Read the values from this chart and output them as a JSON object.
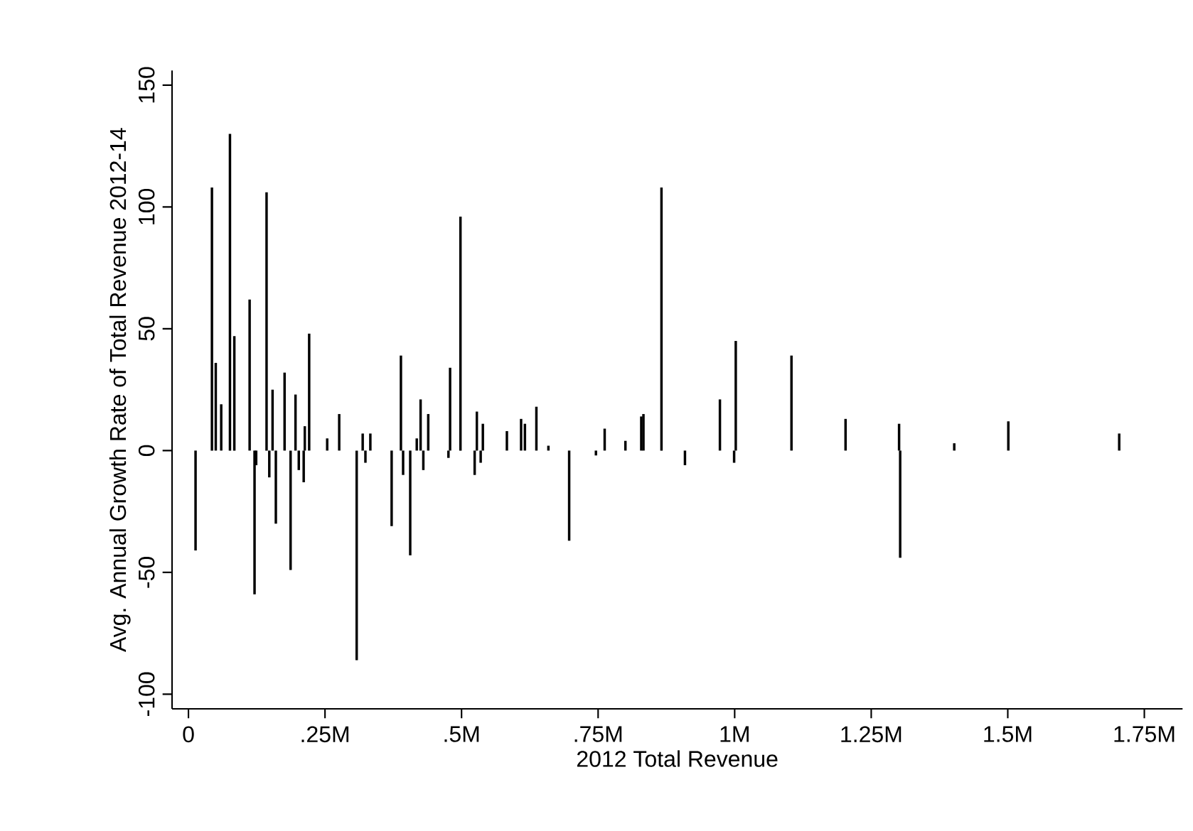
{
  "chart_data": {
    "type": "bar",
    "xlabel": "2012 Total Revenue",
    "ylabel": "Avg. Annual Growth Rate of Total Revenue 2012-14",
    "color": "#000000",
    "x": [
      13000,
      43000,
      50000,
      60000,
      76000,
      84000,
      112000,
      121000,
      124000,
      143000,
      148000,
      154000,
      160000,
      176000,
      187000,
      196000,
      202000,
      211000,
      213000,
      221000,
      254000,
      276000,
      308000,
      319000,
      324000,
      333000,
      372000,
      389000,
      393000,
      406000,
      418000,
      425000,
      430000,
      439000,
      476000,
      479000,
      498000,
      524000,
      528000,
      535000,
      539000,
      583000,
      609000,
      616000,
      637000,
      659000,
      697000,
      746000,
      762000,
      800000,
      829000,
      833000,
      866000,
      909000,
      973000,
      999000,
      1002000,
      1104000,
      1203000,
      1301000,
      1303000,
      1402000,
      1501000,
      1704000
    ],
    "values": [
      -41,
      108,
      36,
      19,
      130,
      47,
      62,
      -59,
      -6,
      106,
      -11,
      25,
      -30,
      32,
      -49,
      23,
      -8,
      -13,
      10,
      48,
      5,
      15,
      -86,
      7,
      -5,
      7,
      -31,
      39,
      -10,
      -43,
      5,
      21,
      -8,
      15,
      -3,
      34,
      96,
      -10,
      16,
      -5,
      11,
      8,
      13,
      11,
      18,
      2,
      -37,
      -2,
      9,
      4,
      14,
      15,
      108,
      -6,
      21,
      -5,
      45,
      39,
      13,
      11,
      -44,
      3,
      12,
      7
    ],
    "xlim": [
      -30000,
      1820000
    ],
    "ylim": [
      -106,
      156
    ],
    "xticks": [
      {
        "value": 0,
        "label": "0"
      },
      {
        "value": 250000,
        "label": ".25M"
      },
      {
        "value": 500000,
        "label": ".5M"
      },
      {
        "value": 750000,
        "label": ".75M"
      },
      {
        "value": 1000000,
        "label": "1M"
      },
      {
        "value": 1250000,
        "label": "1.25M"
      },
      {
        "value": 1500000,
        "label": "1.5M"
      },
      {
        "value": 1750000,
        "label": "1.75M"
      }
    ],
    "yticks": [
      -100,
      -50,
      0,
      50,
      100,
      150
    ],
    "grid": false
  }
}
